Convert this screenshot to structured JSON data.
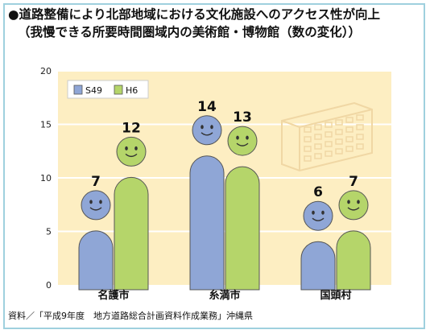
{
  "title": "●道路整備により北部地域における文化施設へのアクセス性が向上",
  "subtitle": "（我慢できる所要時間圏域内の美術館・博物館（数の変化））",
  "source": "資料／「平成9年度　地方道路総合計画資料作成業務」沖縄県",
  "chart_data": {
    "type": "bar",
    "categories": [
      "名護市",
      "糸満市",
      "国頭村"
    ],
    "series": [
      {
        "name": "S49",
        "values": [
          7,
          14,
          6
        ],
        "color": "#8fa6d6"
      },
      {
        "name": "H6",
        "values": [
          12,
          13,
          7
        ],
        "color": "#b5d56a"
      }
    ],
    "ylim": [
      0,
      20
    ],
    "yticks": [
      "0",
      "5",
      "10",
      "15",
      "20"
    ],
    "legend_position": "top-left",
    "grid": true,
    "background_color": "#fdeec2"
  }
}
